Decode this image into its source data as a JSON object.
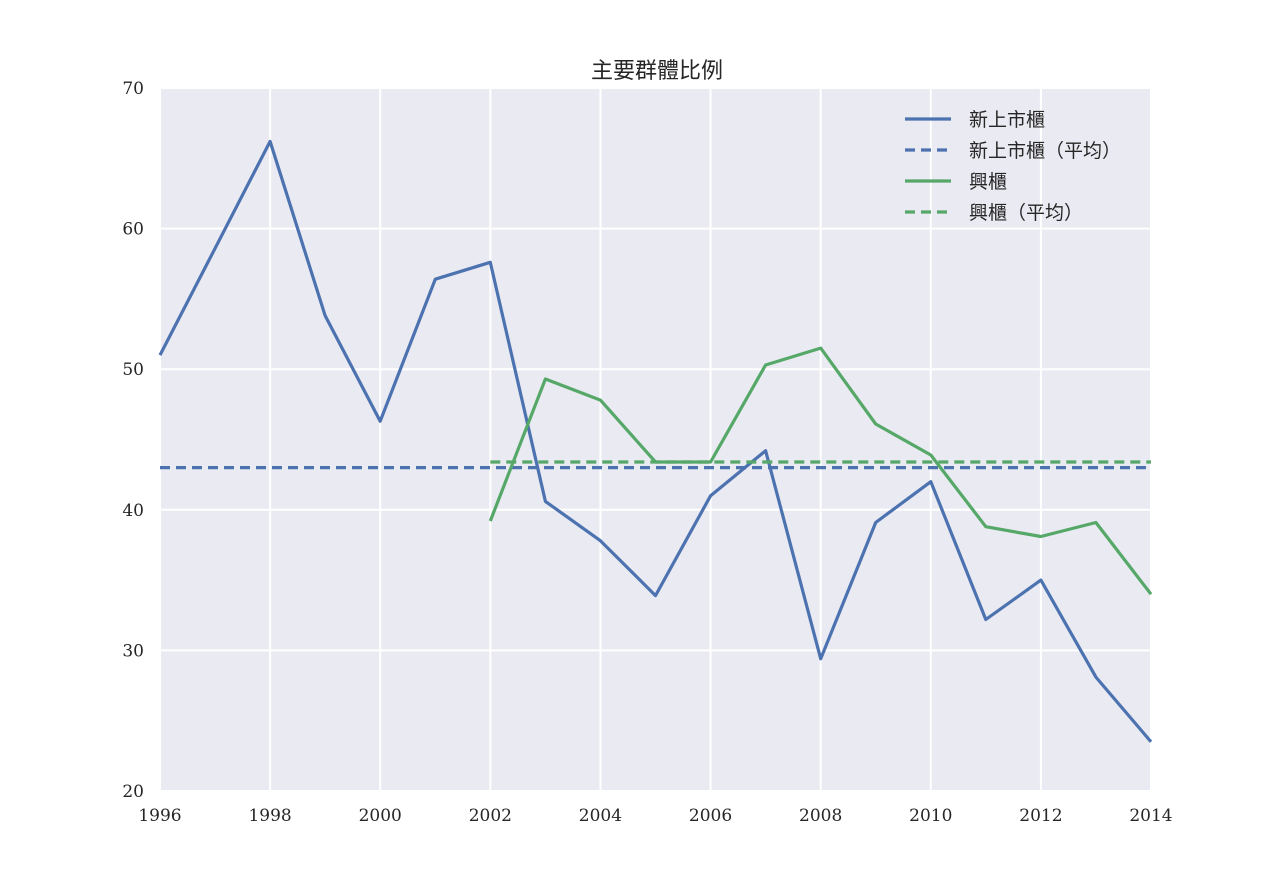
{
  "chart_data": {
    "type": "line",
    "title": "主要群體比例",
    "xlabel": "",
    "ylabel": "",
    "xlim": [
      1996,
      2014
    ],
    "ylim": [
      20,
      70
    ],
    "x_ticks": [
      1996,
      1998,
      2000,
      2002,
      2004,
      2006,
      2008,
      2010,
      2012,
      2014
    ],
    "y_ticks": [
      20,
      30,
      40,
      50,
      60,
      70
    ],
    "grid": true,
    "legend_position": "top-right",
    "series": [
      {
        "name": "新上市櫃",
        "color": "#4c72b0",
        "style": "solid",
        "x": [
          1996,
          1997,
          1998,
          1999,
          2000,
          2001,
          2002,
          2003,
          2004,
          2005,
          2006,
          2007,
          2008,
          2009,
          2010,
          2011,
          2012,
          2013,
          2014
        ],
        "y": [
          51.0,
          58.6,
          66.2,
          53.8,
          46.3,
          56.4,
          57.6,
          40.6,
          37.8,
          33.9,
          41.0,
          44.2,
          29.4,
          39.1,
          42.0,
          32.2,
          35.0,
          28.1,
          23.5
        ]
      },
      {
        "name": "新上市櫃（平均）",
        "color": "#4c72b0",
        "style": "dashed",
        "x": [
          1996,
          2014
        ],
        "y": [
          43.0,
          43.0
        ]
      },
      {
        "name": "興櫃",
        "color": "#55a868",
        "style": "solid",
        "x": [
          2002,
          2003,
          2004,
          2005,
          2006,
          2007,
          2008,
          2009,
          2010,
          2011,
          2012,
          2013,
          2014
        ],
        "y": [
          39.2,
          49.3,
          47.8,
          43.4,
          43.4,
          50.3,
          51.5,
          46.1,
          43.9,
          38.8,
          38.1,
          39.1,
          34.0
        ]
      },
      {
        "name": "興櫃（平均）",
        "color": "#55a868",
        "style": "dashed",
        "x": [
          2002,
          2014
        ],
        "y": [
          43.4,
          43.4
        ]
      }
    ]
  }
}
